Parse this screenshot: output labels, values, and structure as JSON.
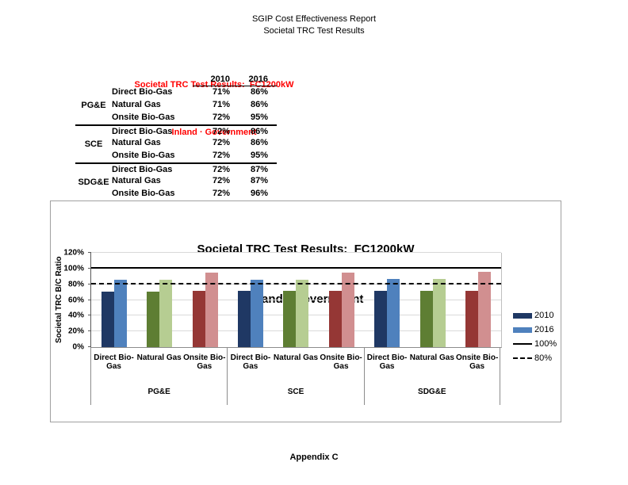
{
  "page": {
    "header_line1": "SGIP Cost Effectiveness Report",
    "header_line2": "Societal TRC Test Results",
    "footer": "Appendix C"
  },
  "summary_table": {
    "title_line1": "Societal TRC Test Results:  FC1200kW",
    "title_line2": "Inland · Government",
    "title_color": "#FF0000",
    "columns": [
      "2010",
      "2016"
    ],
    "groups": [
      {
        "utility": "PG&E",
        "rows": [
          {
            "category": "Direct Bio-Gas",
            "v2010": "71%",
            "v2016": "86%"
          },
          {
            "category": "Natural Gas",
            "v2010": "71%",
            "v2016": "86%"
          },
          {
            "category": "Onsite Bio-Gas",
            "v2010": "72%",
            "v2016": "95%"
          }
        ]
      },
      {
        "utility": "SCE",
        "rows": [
          {
            "category": "Direct Bio-Gas",
            "v2010": "72%",
            "v2016": "86%"
          },
          {
            "category": "Natural Gas",
            "v2010": "72%",
            "v2016": "86%"
          },
          {
            "category": "Onsite Bio-Gas",
            "v2010": "72%",
            "v2016": "95%"
          }
        ]
      },
      {
        "utility": "SDG&E",
        "rows": [
          {
            "category": "Direct Bio-Gas",
            "v2010": "72%",
            "v2016": "87%"
          },
          {
            "category": "Natural Gas",
            "v2010": "72%",
            "v2016": "87%"
          },
          {
            "category": "Onsite Bio-Gas",
            "v2010": "72%",
            "v2016": "96%"
          }
        ]
      }
    ]
  },
  "chart_data": {
    "type": "bar",
    "title_line1": "Societal TRC Test Results:  FC1200kW",
    "title_line2": "Inland · Government",
    "ylabel": "Societal TRC B/C Ratio",
    "ylim": [
      0,
      120
    ],
    "ytick_labels": [
      "0%",
      "20%",
      "40%",
      "60%",
      "80%",
      "100%",
      "120%"
    ],
    "grid": true,
    "groups": [
      "PG&E",
      "SCE",
      "SDG&E"
    ],
    "categories": [
      "Direct Bio-Gas",
      "Natural Gas",
      "Onsite Bio-Gas"
    ],
    "series": [
      {
        "name": "2010",
        "values": [
          71,
          71,
          72,
          72,
          72,
          72,
          72,
          72,
          72
        ]
      },
      {
        "name": "2016",
        "values": [
          86,
          86,
          95,
          86,
          86,
          95,
          87,
          87,
          96
        ]
      }
    ],
    "bar_colors": {
      "Direct Bio-Gas": {
        "2010": "#1F3864",
        "2016": "#4F81BD"
      },
      "Natural Gas": {
        "2010": "#5E7E33",
        "2016": "#B6CD92"
      },
      "Onsite Bio-Gas": {
        "2010": "#953735",
        "2016": "#D18F90"
      }
    },
    "reference_lines": [
      {
        "label": "100%",
        "value": 100,
        "style": "solid"
      },
      {
        "label": "80%",
        "value": 80,
        "style": "dashed"
      }
    ],
    "legend": [
      {
        "label": "2010",
        "swatch": "rect",
        "color": "#1F3864"
      },
      {
        "label": "2016",
        "swatch": "rect",
        "color": "#4F81BD"
      },
      {
        "label": "100%",
        "swatch": "line-solid",
        "color": "#000000"
      },
      {
        "label": "80%",
        "swatch": "line-dashed",
        "color": "#000000"
      }
    ],
    "legend_position": "right"
  }
}
